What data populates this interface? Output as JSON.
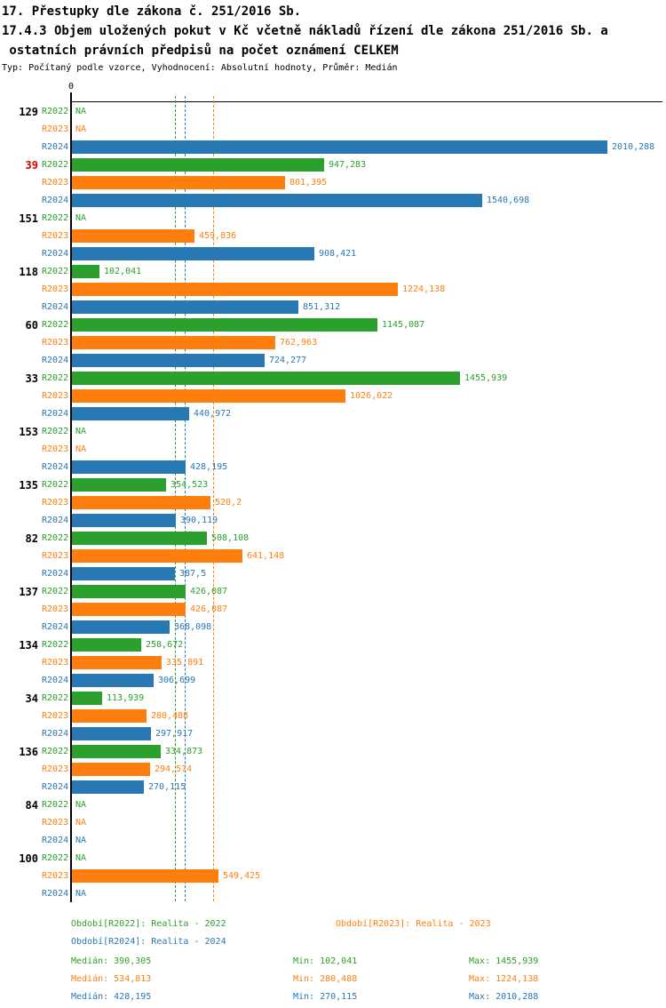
{
  "header": {
    "line1": "17. Přestupky dle zákona č. 251/2016 Sb.",
    "line2": "17.4.3 Objem uložených pokut v Kč včetně nákladů řízení dle zákona 251/2016 Sb. a",
    "line3": " ostatních právních předpisů na počet oznámení CELKEM",
    "meta": "Typ: Počítaný podle vzorce, Vyhodnocení: Absolutní hodnoty, Průměr: Medián"
  },
  "colors": {
    "r2022": "#2ca02c",
    "r2023": "#ff7f0e",
    "r2024": "#2878b4",
    "axis": "#000000",
    "category": "#000000",
    "category_highlight": "#dd0000"
  },
  "chart_data": {
    "type": "bar",
    "orientation": "horizontal",
    "axis": {
      "zero_label": "0",
      "origin_value": 0
    },
    "series": [
      "R2022",
      "R2023",
      "R2024"
    ],
    "na_label": "NA",
    "highlighted_categories": [
      "39"
    ],
    "groups": [
      {
        "category": "129",
        "values": [
          "NA",
          "NA",
          "2010,288"
        ]
      },
      {
        "category": "39",
        "values": [
          "947,283",
          "801,395",
          "1540,698"
        ]
      },
      {
        "category": "151",
        "values": [
          "NA",
          "459,836",
          "908,421"
        ]
      },
      {
        "category": "118",
        "values": [
          "102,041",
          "1224,138",
          "851,312"
        ]
      },
      {
        "category": "60",
        "values": [
          "1145,087",
          "762,963",
          "724,277"
        ]
      },
      {
        "category": "33",
        "values": [
          "1455,939",
          "1026,022",
          "440,972"
        ]
      },
      {
        "category": "153",
        "values": [
          "NA",
          "NA",
          "428,195"
        ]
      },
      {
        "category": "135",
        "values": [
          "354,523",
          "520,2",
          "390,119"
        ]
      },
      {
        "category": "82",
        "values": [
          "508,108",
          "641,148",
          "387,5"
        ]
      },
      {
        "category": "137",
        "values": [
          "426,087",
          "426,087",
          "368,098"
        ]
      },
      {
        "category": "134",
        "values": [
          "258,672",
          "335,891",
          "306,699"
        ]
      },
      {
        "category": "34",
        "values": [
          "113,939",
          "280,488",
          "297,917"
        ]
      },
      {
        "category": "136",
        "values": [
          "334,873",
          "294,574",
          "270,115"
        ]
      },
      {
        "category": "84",
        "values": [
          "NA",
          "NA",
          "NA"
        ]
      },
      {
        "category": "100",
        "values": [
          "NA",
          "549,425",
          "NA"
        ]
      }
    ],
    "median_lines": {
      "R2022": 390.305,
      "R2023": 534.813,
      "R2024": 428.195
    }
  },
  "legend": {
    "items": [
      {
        "label": "Období[R2022]: Realita - 2022",
        "series": "R2022"
      },
      {
        "label": "Období[R2023]: Realita - 2023",
        "series": "R2023"
      },
      {
        "label": "Období[R2024]: Realita - 2024",
        "series": "R2024"
      }
    ]
  },
  "stats": {
    "rows": [
      {
        "series": "R2022",
        "median": "Medián: 390,305",
        "min": "Min: 102,041",
        "max": "Max: 1455,939"
      },
      {
        "series": "R2023",
        "median": "Medián: 534,813",
        "min": "Min: 280,488",
        "max": "Max: 1224,138"
      },
      {
        "series": "R2024",
        "median": "Medián: 428,195",
        "min": "Min: 270,115",
        "max": "Max: 2010,288"
      }
    ]
  }
}
